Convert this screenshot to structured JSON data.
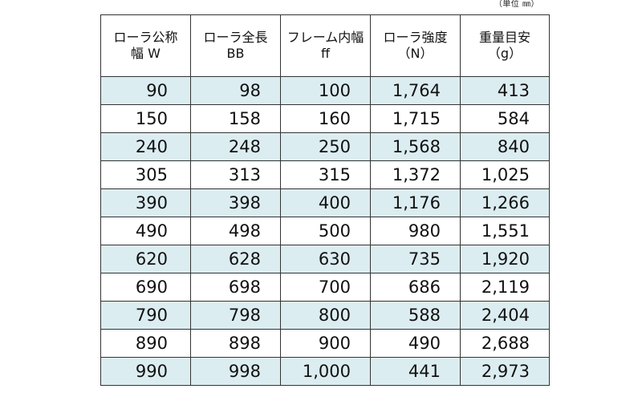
{
  "unit_note": "（単位 ㎜）",
  "table": {
    "headers": [
      {
        "line1": "ローラ公称",
        "line2": "幅 W"
      },
      {
        "line1": "ローラ全長",
        "line2": "BB"
      },
      {
        "line1": "フレーム内幅",
        "line2": "ff"
      },
      {
        "line1": "ローラ強度",
        "line2": "（N）"
      },
      {
        "line1": "重量目安",
        "line2": "（g）"
      }
    ],
    "rows": [
      [
        "90",
        "98",
        "100",
        "1,764",
        "413"
      ],
      [
        "150",
        "158",
        "160",
        "1,715",
        "584"
      ],
      [
        "240",
        "248",
        "250",
        "1,568",
        "840"
      ],
      [
        "305",
        "313",
        "315",
        "1,372",
        "1,025"
      ],
      [
        "390",
        "398",
        "400",
        "1,176",
        "1,266"
      ],
      [
        "490",
        "498",
        "500",
        "980",
        "1,551"
      ],
      [
        "620",
        "628",
        "630",
        "735",
        "1,920"
      ],
      [
        "690",
        "698",
        "700",
        "686",
        "2,119"
      ],
      [
        "790",
        "798",
        "800",
        "588",
        "2,404"
      ],
      [
        "890",
        "898",
        "900",
        "490",
        "2,688"
      ],
      [
        "990",
        "998",
        "1,000",
        "441",
        "2,973"
      ]
    ],
    "shade_color": "#dcedf1"
  }
}
